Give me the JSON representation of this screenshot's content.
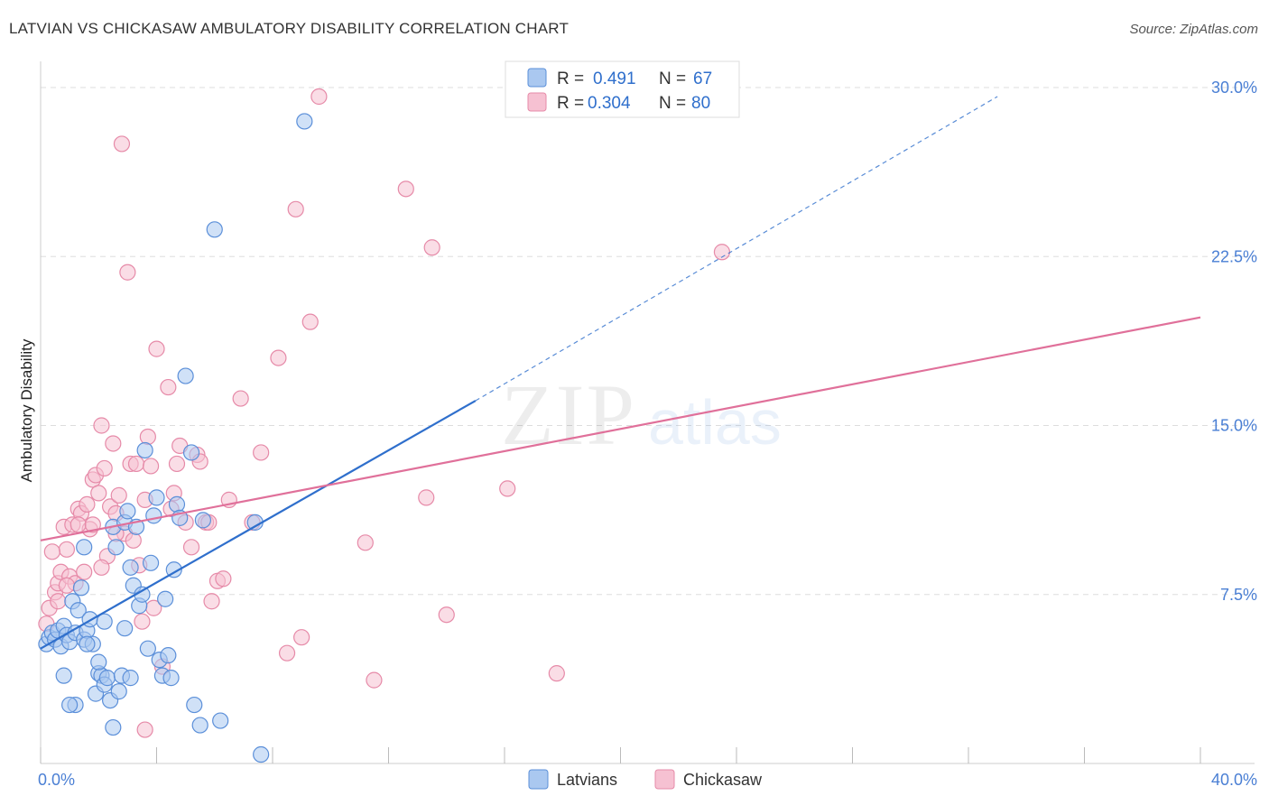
{
  "title": "LATVIAN VS CHICKASAW AMBULATORY DISABILITY CORRELATION CHART",
  "source": "Source: ZipAtlas.com",
  "watermark": {
    "zip": "ZIP",
    "atlas": "atlas"
  },
  "colors": {
    "blue": "#5b8fd9",
    "blue_fill": "#aac8f0",
    "blue_line": "#2f6fcc",
    "pink": "#e68aa8",
    "pink_fill": "#f6c1d2",
    "pink_line": "#e0709a",
    "value_text": "#2f6fcc",
    "grid": "#dddddd"
  },
  "legend": [
    {
      "r_label": "R =",
      "r_value": "0.491",
      "n_label": "N =",
      "n_value": "67",
      "color": "blue"
    },
    {
      "r_label": "R =",
      "r_value": "0.304",
      "n_label": "N =",
      "n_value": "80",
      "color": "pink"
    }
  ],
  "bottom_legend": [
    "Latvians",
    "Chickasaw"
  ],
  "chart_data": {
    "type": "scatter",
    "title": "LATVIAN VS CHICKASAW AMBULATORY DISABILITY CORRELATION CHART",
    "xlabel": "",
    "ylabel": "Ambulatory Disability",
    "xlim": [
      0,
      40
    ],
    "ylim": [
      0,
      30
    ],
    "x_tick_labels": [
      "0.0%",
      "40.0%"
    ],
    "y_ticks": [
      7.5,
      15.0,
      22.5,
      30.0
    ],
    "y_tick_labels": [
      "7.5%",
      "15.0%",
      "22.5%",
      "30.0%"
    ],
    "grid": true,
    "legend_position": "top-center",
    "series": [
      {
        "name": "Latvians",
        "color": "blue",
        "R": 0.491,
        "N": 67,
        "trend": {
          "x0": 0,
          "y0": 5.1,
          "x1": 15.0,
          "y1": 16.1,
          "dash_x1": 33.0,
          "dash_y1": 29.6
        },
        "points": [
          [
            0.2,
            5.3
          ],
          [
            0.3,
            5.6
          ],
          [
            0.4,
            5.8
          ],
          [
            0.5,
            5.5
          ],
          [
            0.6,
            5.9
          ],
          [
            0.7,
            5.2
          ],
          [
            0.8,
            6.1
          ],
          [
            0.9,
            5.7
          ],
          [
            1.0,
            5.4
          ],
          [
            1.1,
            7.2
          ],
          [
            1.2,
            5.8
          ],
          [
            1.3,
            6.8
          ],
          [
            1.4,
            7.8
          ],
          [
            1.5,
            5.5
          ],
          [
            1.6,
            5.9
          ],
          [
            1.7,
            6.4
          ],
          [
            1.8,
            5.3
          ],
          [
            1.9,
            3.1
          ],
          [
            2.0,
            4.0
          ],
          [
            2.1,
            3.9
          ],
          [
            2.2,
            3.5
          ],
          [
            2.3,
            3.8
          ],
          [
            2.4,
            2.8
          ],
          [
            2.5,
            10.5
          ],
          [
            2.6,
            9.6
          ],
          [
            2.7,
            3.2
          ],
          [
            2.8,
            3.9
          ],
          [
            2.9,
            10.7
          ],
          [
            3.0,
            11.2
          ],
          [
            3.1,
            8.7
          ],
          [
            3.2,
            7.9
          ],
          [
            3.3,
            10.5
          ],
          [
            3.4,
            7.0
          ],
          [
            3.5,
            7.5
          ],
          [
            3.6,
            13.9
          ],
          [
            3.7,
            5.1
          ],
          [
            3.8,
            8.9
          ],
          [
            3.9,
            11.0
          ],
          [
            4.0,
            11.8
          ],
          [
            4.1,
            4.6
          ],
          [
            4.2,
            3.9
          ],
          [
            4.3,
            7.3
          ],
          [
            4.4,
            4.8
          ],
          [
            4.5,
            3.8
          ],
          [
            4.6,
            8.6
          ],
          [
            4.7,
            11.5
          ],
          [
            4.8,
            10.9
          ],
          [
            5.0,
            17.2
          ],
          [
            5.2,
            13.8
          ],
          [
            5.3,
            2.6
          ],
          [
            5.5,
            1.7
          ],
          [
            5.6,
            10.8
          ],
          [
            6.0,
            23.7
          ],
          [
            6.2,
            1.9
          ],
          [
            7.4,
            10.7
          ],
          [
            7.6,
            0.4
          ],
          [
            9.1,
            28.5
          ],
          [
            1.2,
            2.6
          ],
          [
            1.5,
            9.6
          ],
          [
            0.8,
            3.9
          ],
          [
            1.0,
            2.6
          ],
          [
            2.2,
            6.3
          ],
          [
            2.5,
            1.6
          ],
          [
            2.9,
            6.0
          ],
          [
            3.1,
            3.8
          ],
          [
            1.6,
            5.3
          ],
          [
            2.0,
            4.5
          ]
        ]
      },
      {
        "name": "Chickasaw",
        "color": "pink",
        "R": 0.304,
        "N": 80,
        "trend": {
          "x0": 0,
          "y0": 9.9,
          "x1": 40,
          "y1": 19.8
        },
        "points": [
          [
            0.2,
            6.2
          ],
          [
            0.3,
            6.9
          ],
          [
            0.5,
            7.6
          ],
          [
            0.6,
            8.0
          ],
          [
            0.7,
            8.5
          ],
          [
            0.8,
            10.5
          ],
          [
            0.9,
            9.5
          ],
          [
            1.0,
            8.3
          ],
          [
            1.1,
            10.6
          ],
          [
            1.2,
            8.0
          ],
          [
            1.3,
            11.3
          ],
          [
            1.4,
            11.1
          ],
          [
            1.5,
            8.5
          ],
          [
            1.6,
            11.5
          ],
          [
            1.7,
            10.4
          ],
          [
            1.8,
            12.6
          ],
          [
            1.9,
            12.8
          ],
          [
            2.0,
            12.0
          ],
          [
            2.1,
            15.0
          ],
          [
            2.2,
            13.1
          ],
          [
            2.3,
            9.2
          ],
          [
            2.4,
            11.4
          ],
          [
            2.5,
            14.2
          ],
          [
            2.6,
            11.1
          ],
          [
            2.7,
            11.9
          ],
          [
            2.8,
            27.5
          ],
          [
            2.9,
            10.2
          ],
          [
            3.0,
            21.8
          ],
          [
            3.1,
            13.3
          ],
          [
            3.2,
            9.9
          ],
          [
            3.3,
            13.3
          ],
          [
            3.4,
            8.8
          ],
          [
            3.5,
            6.3
          ],
          [
            3.6,
            11.7
          ],
          [
            3.7,
            14.5
          ],
          [
            3.8,
            13.2
          ],
          [
            3.9,
            6.9
          ],
          [
            4.0,
            18.4
          ],
          [
            4.2,
            4.3
          ],
          [
            4.4,
            16.7
          ],
          [
            4.5,
            11.3
          ],
          [
            4.6,
            12.0
          ],
          [
            4.7,
            13.3
          ],
          [
            4.8,
            14.1
          ],
          [
            5.0,
            10.7
          ],
          [
            5.2,
            9.6
          ],
          [
            5.4,
            13.7
          ],
          [
            5.5,
            13.4
          ],
          [
            5.7,
            10.7
          ],
          [
            5.8,
            10.7
          ],
          [
            5.9,
            7.2
          ],
          [
            6.1,
            8.1
          ],
          [
            6.3,
            8.2
          ],
          [
            6.5,
            11.7
          ],
          [
            6.9,
            16.2
          ],
          [
            7.3,
            10.7
          ],
          [
            7.6,
            13.8
          ],
          [
            8.2,
            18.0
          ],
          [
            8.5,
            4.9
          ],
          [
            8.8,
            24.6
          ],
          [
            9.0,
            5.6
          ],
          [
            9.3,
            19.6
          ],
          [
            11.2,
            9.8
          ],
          [
            11.5,
            3.7
          ],
          [
            12.6,
            25.5
          ],
          [
            13.3,
            11.8
          ],
          [
            13.5,
            22.9
          ],
          [
            14.0,
            6.6
          ],
          [
            16.1,
            12.2
          ],
          [
            17.8,
            4.0
          ],
          [
            23.5,
            22.7
          ],
          [
            0.4,
            9.4
          ],
          [
            0.9,
            7.9
          ],
          [
            1.3,
            10.6
          ],
          [
            2.1,
            8.7
          ],
          [
            2.6,
            10.2
          ],
          [
            3.6,
            1.5
          ],
          [
            0.6,
            7.2
          ],
          [
            1.8,
            10.6
          ],
          [
            9.6,
            29.6
          ]
        ]
      }
    ]
  }
}
